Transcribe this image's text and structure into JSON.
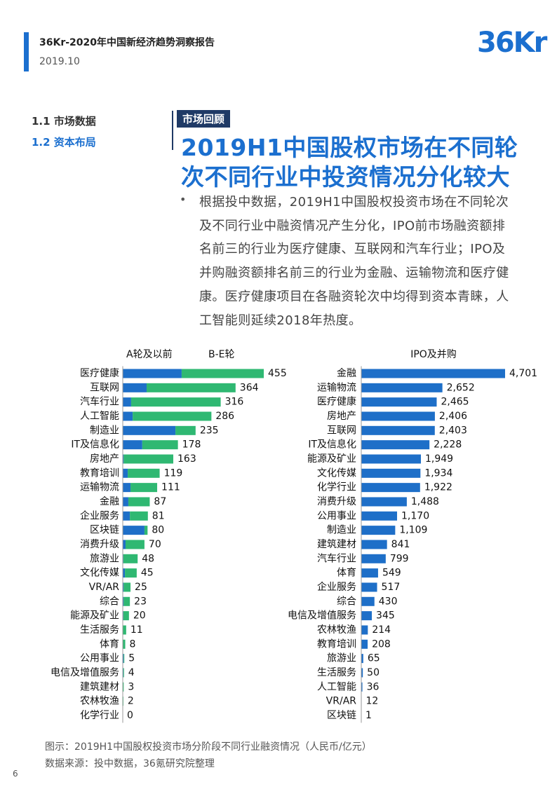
{
  "header": {
    "title": "36Kr-2020年中国新经济趋势洞察报告",
    "date": "2019.10",
    "logo": "36Kr"
  },
  "nav": [
    "1.1 市场数据",
    "1.2 资本布局"
  ],
  "tag": "市场回顾",
  "title_lines": [
    "2019H1中国股权市场在不同轮",
    "次不同行业中投资情况分化较大"
  ],
  "bullet": "•",
  "paragraph": "根据投中数据，2019H1中国股权投资市场在不同轮次及不同行业中融资情况产生分化，IPO前市场融资额排名前三的行业为医疗健康、互联网和汽车行业；IPO及并购融资额排名前三的行业为金融、运输物流和医疗健康。医疗健康项目在各融资轮次中均得到资本青睐，人工智能则延续2018年热度。",
  "chart_data": [
    {
      "type": "stacked_bar_h",
      "categories": [
        "医疗健康",
        "互联网",
        "汽车行业",
        "人工智能",
        "制造业",
        "IT及信息化",
        "房地产",
        "教育培训",
        "运输物流",
        "金融",
        "企业服务",
        "区块链",
        "消费升级",
        "旅游业",
        "文化传媒",
        "VR/AR",
        "综合",
        "能源及矿业",
        "生活服务",
        "体育",
        "公用事业",
        "电信及增值服务",
        "建筑建材",
        "农林牧渔",
        "化学行业"
      ],
      "series": [
        {
          "name": "A轮及以前",
          "color": "#1e6fc8",
          "values": [
            190,
            77,
            27,
            32,
            170,
            63,
            3,
            16,
            25,
            18,
            23,
            70,
            9,
            2,
            7,
            3,
            3,
            2,
            1,
            1,
            3,
            2,
            1,
            1,
            0
          ]
        },
        {
          "name": "B-E轮",
          "color": "#2fb872",
          "values": [
            265,
            287,
            289,
            254,
            65,
            115,
            160,
            103,
            86,
            69,
            58,
            10,
            61,
            46,
            38,
            22,
            20,
            18,
            10,
            7,
            2,
            2,
            2,
            1,
            0
          ]
        }
      ],
      "totals": [
        455,
        364,
        316,
        286,
        235,
        178,
        163,
        119,
        111,
        87,
        81,
        80,
        70,
        48,
        45,
        25,
        23,
        20,
        11,
        8,
        5,
        4,
        3,
        2,
        0
      ]
    },
    {
      "type": "bar_h",
      "series": [
        {
          "name": "IPO及并购",
          "color": "#1e6fc8",
          "values": [
            4701,
            2652,
            2465,
            2406,
            2403,
            2228,
            1949,
            1934,
            1922,
            1488,
            1170,
            1109,
            841,
            799,
            549,
            517,
            430,
            345,
            214,
            208,
            65,
            50,
            36,
            12,
            1
          ],
          "value_labels": [
            "4,701",
            "2,652",
            "2,465",
            "2,406",
            "2,403",
            "2,228",
            "1,949",
            "1,934",
            "1,922",
            "1,488",
            "1,170",
            "1,109",
            "841",
            "799",
            "549",
            "517",
            "430",
            "345",
            "214",
            "208",
            "65",
            "50",
            "36",
            "12",
            "1"
          ]
        }
      ],
      "categories": [
        "金融",
        "运输物流",
        "医疗健康",
        "房地产",
        "互联网",
        "IT及信息化",
        "能源及矿业",
        "文化传媒",
        "化学行业",
        "消费升级",
        "公用事业",
        "制造业",
        "建筑建材",
        "汽车行业",
        "体育",
        "企业服务",
        "综合",
        "电信及增值服务",
        "农林牧渔",
        "教育培训",
        "旅游业",
        "生活服务",
        "人工智能",
        "VR/AR",
        "区块链"
      ]
    }
  ],
  "caption": "图示：2019H1中国股权投资市场分阶段不同行业融资情况（人民币/亿元）",
  "source": "数据来源：投中数据，36氪研究院整理",
  "page_number": "6"
}
